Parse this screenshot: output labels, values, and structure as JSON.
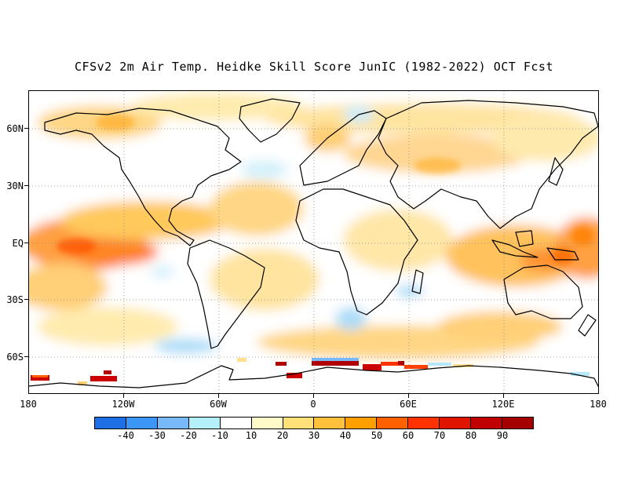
{
  "title": "CFSv2 2m Air Temp. Heidke Skill Score JunIC (1982-2022) OCT Fcst",
  "lat_labels": [
    "60N",
    "30N",
    "EQ",
    "30S",
    "60S"
  ],
  "lon_labels": [
    "180",
    "120W",
    "60W",
    "0",
    "60E",
    "120E",
    "180"
  ],
  "colorbar": {
    "colors": [
      "#1e6ee6",
      "#3c96f5",
      "#78b9fa",
      "#b4f0fa",
      "#ffffff",
      "#fffac8",
      "#ffe178",
      "#ffc03c",
      "#ffa000",
      "#ff6000",
      "#ff3200",
      "#e11400",
      "#c00000",
      "#a50000"
    ],
    "labels": [
      "-40",
      "-30",
      "-20",
      "-10",
      "10",
      "20",
      "30",
      "40",
      "50",
      "60",
      "70",
      "80",
      "90"
    ]
  }
}
